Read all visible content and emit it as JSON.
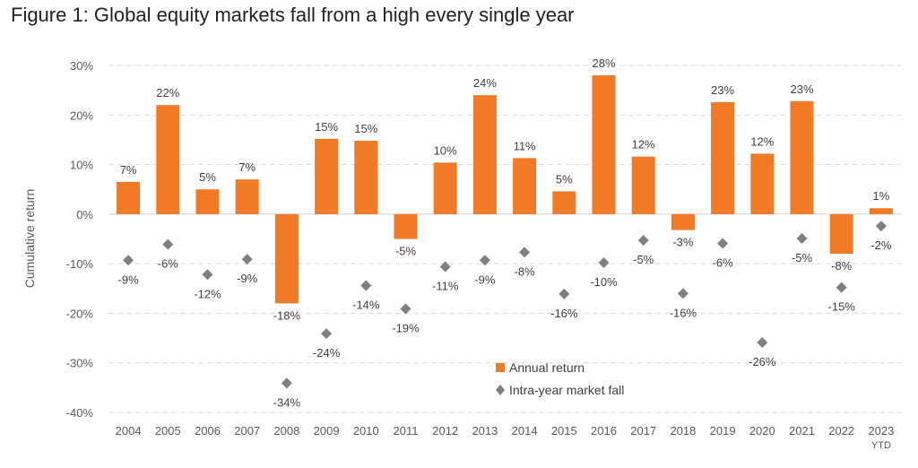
{
  "title": "Figure 1: Global equity markets fall from a high every single year",
  "chart_data": {
    "type": "bar",
    "title": "Figure 1: Global equity markets fall from a high every single year",
    "ylabel": "Cumulative return",
    "xlabel": "",
    "ylim": [
      -40,
      30
    ],
    "yticks": [
      30,
      20,
      10,
      0,
      -10,
      -20,
      -30,
      -40
    ],
    "ytick_labels": [
      "30%",
      "20%",
      "10%",
      "0%",
      "-10%",
      "-20%",
      "-30%",
      "-40%"
    ],
    "grid": true,
    "legend_position": "lower-right",
    "categories": [
      "2004",
      "2005",
      "2006",
      "2007",
      "2008",
      "2009",
      "2010",
      "2011",
      "2012",
      "2013",
      "2014",
      "2015",
      "2016",
      "2017",
      "2018",
      "2019",
      "2020",
      "2021",
      "2022",
      "2023\nYTD"
    ],
    "category_lines": [
      [
        "2004"
      ],
      [
        "2005"
      ],
      [
        "2006"
      ],
      [
        "2007"
      ],
      [
        "2008"
      ],
      [
        "2009"
      ],
      [
        "2010"
      ],
      [
        "2011"
      ],
      [
        "2012"
      ],
      [
        "2013"
      ],
      [
        "2014"
      ],
      [
        "2015"
      ],
      [
        "2016"
      ],
      [
        "2017"
      ],
      [
        "2018"
      ],
      [
        "2019"
      ],
      [
        "2020"
      ],
      [
        "2021"
      ],
      [
        "2022"
      ],
      [
        "2023",
        "YTD"
      ]
    ],
    "series": [
      {
        "name": "Annual return",
        "kind": "bar",
        "color": "#F07A25",
        "values": [
          6.5,
          22,
          5,
          7,
          -18,
          15.2,
          14.8,
          -5,
          10.4,
          24,
          11.3,
          4.6,
          28,
          11.6,
          -3.2,
          22.6,
          12.2,
          22.8,
          -8,
          1.2
        ],
        "labels": [
          "7%",
          "22%",
          "5%",
          "7%",
          "-18%",
          "15%",
          "15%",
          "-5%",
          "10%",
          "24%",
          "11%",
          "5%",
          "28%",
          "12%",
          "-3%",
          "23%",
          "12%",
          "23%",
          "-8%",
          "1%"
        ]
      },
      {
        "name": "Intra-year market fall",
        "kind": "marker",
        "marker": "diamond",
        "color": "#7F7F7F",
        "values": [
          -9.3,
          -6.1,
          -12.2,
          -9.1,
          -34.1,
          -24.1,
          -14.4,
          -19.1,
          -10.6,
          -9.3,
          -7.7,
          -16.1,
          -9.8,
          -5.3,
          -16,
          -5.9,
          -25.9,
          -4.9,
          -14.8,
          -2.4
        ],
        "labels": [
          "-9%",
          "-6%",
          "-12%",
          "-9%",
          "-34%",
          "-24%",
          "-14%",
          "-19%",
          "-11%",
          "-9%",
          "-8%",
          "-16%",
          "-10%",
          "-5%",
          "-16%",
          "-6%",
          "-26%",
          "-5%",
          "-15%",
          "-2%"
        ]
      }
    ]
  }
}
